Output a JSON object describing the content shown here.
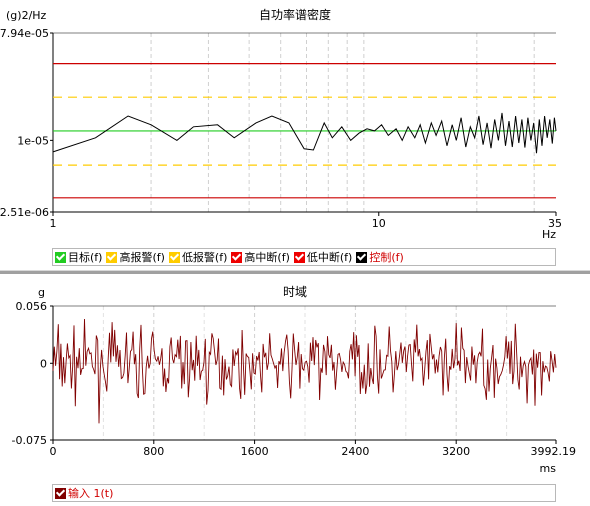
{
  "chart_data": [
    {
      "type": "line",
      "title": "自功率谱密度",
      "ylabel": "(g)2/Hz",
      "xlabel": "Hz",
      "x_scale": "log",
      "y_scale": "log",
      "xlim": [
        1,
        35
      ],
      "ylim": [
        2.51e-06,
        7.94e-05
      ],
      "x_ticks": [
        1,
        10,
        35
      ],
      "x_tick_labels": [
        "1",
        "10",
        "35"
      ],
      "y_ticks": [
        7.94e-05,
        1e-05,
        2.51e-06
      ],
      "y_tick_labels": [
        "7.94e-05",
        "1e-05",
        "2.51e-06"
      ],
      "reference_lines": [
        {
          "name": "目标(f)",
          "value": 1.2e-05,
          "color": "#22cc22",
          "style": "solid"
        },
        {
          "name": "高报警(f)",
          "value": 2.3e-05,
          "color": "#ffcc00",
          "style": "dashed"
        },
        {
          "name": "低报警(f)",
          "value": 6.2e-06,
          "color": "#ffcc00",
          "style": "dashed"
        },
        {
          "name": "高中断(f)",
          "value": 4.4e-05,
          "color": "#cc0000",
          "style": "solid"
        },
        {
          "name": "低中断(f)",
          "value": 3.3e-06,
          "color": "#cc0000",
          "style": "solid"
        }
      ],
      "series": [
        {
          "name": "控制(f)",
          "color": "#000000",
          "x": [
            1.0,
            1.35,
            1.7,
            2.0,
            2.4,
            2.7,
            3.2,
            3.6,
            4.2,
            4.7,
            5.3,
            5.9,
            6.3,
            6.8,
            7.2,
            7.7,
            8.2,
            8.7,
            9.2,
            9.7,
            10.2,
            10.7,
            11.3,
            11.8,
            12.3,
            12.9,
            13.4,
            13.9,
            14.5,
            15.0,
            15.6,
            16.2,
            16.8,
            17.3,
            17.9,
            18.5,
            19.1,
            19.7,
            20.3,
            20.9,
            21.5,
            22.1,
            22.7,
            23.3,
            23.9,
            24.5,
            25.1,
            25.7,
            26.3,
            26.9,
            27.5,
            28.1,
            28.7,
            29.3,
            29.9,
            30.5,
            31.1,
            31.7,
            32.3,
            32.9,
            33.5,
            34.1,
            34.6,
            35.0
          ],
          "y": [
            8e-06,
            1.05e-05,
            1.6e-05,
            1.35e-05,
            1e-05,
            1.3e-05,
            1.35e-05,
            1.05e-05,
            1.4e-05,
            1.6e-05,
            1.4e-05,
            8.5e-06,
            8.3e-06,
            1.4e-05,
            1.05e-05,
            1.3e-05,
            1e-05,
            1.15e-05,
            1.25e-05,
            1.2e-05,
            1.35e-05,
            1.1e-05,
            1.25e-05,
            1e-05,
            1.3e-05,
            1.05e-05,
            1.35e-05,
            9.5e-06,
            1.4e-05,
            1.1e-05,
            1.45e-05,
            9e-06,
            1.35e-05,
            1e-05,
            1.55e-05,
            8.8e-06,
            1.3e-05,
            1.05e-05,
            1.6e-05,
            9.2e-06,
            1.4e-05,
            8.6e-06,
            1.5e-05,
            1e-05,
            1.7e-05,
            9e-06,
            1.45e-05,
            8.8e-06,
            1.6e-05,
            9.5e-06,
            1.5e-05,
            8.7e-06,
            1.55e-05,
            1e-05,
            1.4e-05,
            7.8e-06,
            1.5e-05,
            9e-06,
            1.6e-05,
            1.05e-05,
            1.5e-05,
            9.4e-06,
            1.55e-05,
            1.2e-05
          ]
        }
      ],
      "legend": {
        "placement": "bottom-left",
        "items": [
          {
            "label": "目标(f)",
            "color": "#22cc22"
          },
          {
            "label": "高报警(f)",
            "color": "#ffcc00"
          },
          {
            "label": "低报警(f)",
            "color": "#ffcc00"
          },
          {
            "label": "高中断(f)",
            "color": "#ee0000"
          },
          {
            "label": "低中断(f)",
            "color": "#ee0000"
          },
          {
            "label": "控制(f)",
            "color": "#000000",
            "label_color": "#d00000"
          }
        ]
      },
      "grid": "vertical-dashed"
    },
    {
      "type": "line",
      "title": "时域",
      "ylabel": "g",
      "xlabel": "ms",
      "xlim": [
        0,
        3992.19
      ],
      "ylim": [
        -0.075,
        0.056
      ],
      "x_ticks": [
        0,
        800,
        1600,
        2400,
        3200,
        3992.19
      ],
      "x_tick_labels": [
        "0",
        "800",
        "1600",
        "2400",
        "3200",
        "3992.19"
      ],
      "y_ticks": [
        0.056,
        0,
        -0.075
      ],
      "y_tick_labels": [
        "0.056",
        "0",
        "-0.075"
      ],
      "series": [
        {
          "name": "输入 1(t)",
          "color": "#800000",
          "sample_count": 384,
          "amplitude_rms": 0.022,
          "seed": 7
        }
      ],
      "legend": {
        "placement": "bottom-left",
        "items": [
          {
            "label": "输入 1(t)",
            "color": "#800000",
            "label_color": "#d00000"
          }
        ]
      },
      "grid": "vertical-dashed"
    }
  ]
}
